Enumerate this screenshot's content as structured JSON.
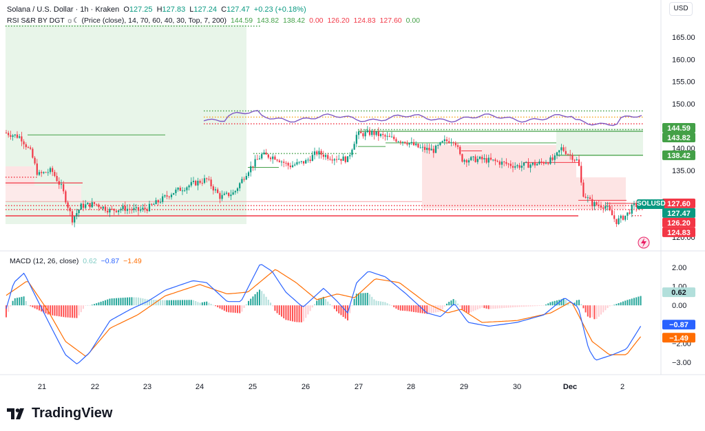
{
  "header": {
    "symbol": "Solana / U.S. Dollar · 1h · Kraken",
    "o_label": "O",
    "o_val": "127.25",
    "h_label": "H",
    "h_val": "127.83",
    "l_label": "L",
    "l_val": "127.24",
    "c_label": "C",
    "c_val": "127.47",
    "change": "+0.23 (+0.18%)",
    "rsi_title": "RSI S&R BY DGT ☼☾ (Price (close), 14, 70, 60, 40, 30, Top, 7, 200)",
    "rsi_values": [
      "144.59",
      "143.82",
      "138.42",
      "0.00",
      "126.20",
      "124.83",
      "127.60",
      "0.00"
    ],
    "currency": "USD"
  },
  "price_axis": {
    "ticks": [
      "165.00",
      "160.00",
      "155.00",
      "150.00",
      "140.00",
      "135.00",
      "120.00"
    ],
    "tick_values": [
      165,
      160,
      155,
      150,
      140,
      135,
      120
    ]
  },
  "price_badges": [
    {
      "text": "144.59",
      "value": 144.59,
      "color": "#43a047"
    },
    {
      "text": "143.82",
      "value": 143.82,
      "color": "#43a047"
    },
    {
      "text": "138.42",
      "value": 138.42,
      "color": "#43a047"
    },
    {
      "text": "127.60",
      "value": 127.6,
      "color": "#f23645"
    },
    {
      "text": "127.47",
      "value": 127.47,
      "color": "#089981"
    },
    {
      "text": "126.20",
      "value": 126.2,
      "color": "#f23645"
    },
    {
      "text": "124.83",
      "value": 124.83,
      "color": "#f23645"
    }
  ],
  "ticker_label": "SOLUSD",
  "macd": {
    "title": "MACD (12, 26, close)",
    "v1": "0.62",
    "v2": "−0.87",
    "v3": "−1.49",
    "ticks": [
      "2.00",
      "1.00",
      "0.00",
      "−2.00",
      "−3.00"
    ],
    "tick_values": [
      2,
      1,
      0,
      -2,
      -3
    ],
    "badges": [
      {
        "text": "0.62",
        "value": 0.62,
        "color": "#b2dfdb",
        "dark": true
      },
      {
        "text": "−0.87",
        "value": -0.87,
        "color": "#2962ff"
      },
      {
        "text": "−1.49",
        "value": -1.49,
        "color": "#ff6d00"
      }
    ]
  },
  "time_axis": {
    "labels": [
      "21",
      "22",
      "23",
      "24",
      "25",
      "26",
      "27",
      "28",
      "29",
      "30",
      "Dec",
      "2"
    ]
  },
  "brand": "TradingView",
  "colors": {
    "up": "#089981",
    "down": "#f23645",
    "rsi": "#7e57c2",
    "macd_line": "#2962ff",
    "signal_line": "#ff6d00",
    "green_zone": "#e8f5e9",
    "red_zone": "#fde4e4"
  },
  "chart_data": [
    {
      "type": "candlestick",
      "title": "Solana / U.S. Dollar · 1h · Kraken",
      "x": [
        "21",
        "22",
        "23",
        "24",
        "25",
        "26",
        "27",
        "28",
        "29",
        "30",
        "Dec",
        "2"
      ],
      "close_approx": [
        143,
        129,
        127,
        131,
        134,
        139,
        143,
        140,
        138,
        137,
        136,
        126
      ],
      "ylim": [
        118,
        168
      ]
    },
    {
      "type": "line",
      "title": "MACD (12, 26, close)",
      "x": [
        "21",
        "22",
        "23",
        "24",
        "25",
        "26",
        "27",
        "28",
        "29",
        "30",
        "Dec",
        "2"
      ],
      "series": [
        {
          "name": "MACD",
          "values": [
            1.5,
            -3.0,
            0.2,
            1.3,
            2.1,
            0.8,
            1.9,
            0.1,
            -0.9,
            -0.6,
            0.4,
            -0.87
          ]
        },
        {
          "name": "Signal",
          "values": [
            1.6,
            -2.8,
            -0.2,
            1.0,
            1.8,
            1.0,
            1.7,
            0.5,
            -1.0,
            -0.7,
            0.2,
            -1.49
          ]
        }
      ],
      "ylim": [
        -3.4,
        2.4
      ]
    }
  ]
}
